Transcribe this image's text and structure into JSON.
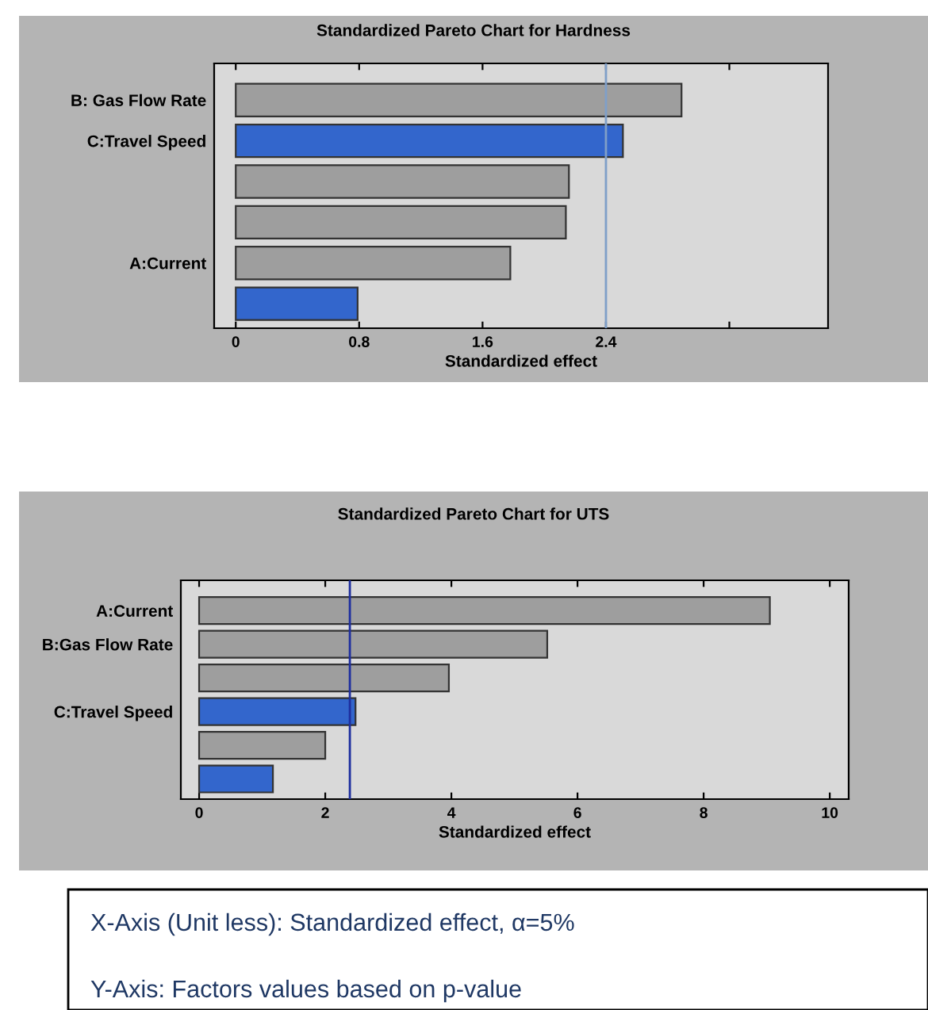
{
  "chart_data": [
    {
      "type": "bar",
      "orientation": "horizontal",
      "title": "Standardized Pareto Chart for Hardness",
      "xlabel": "Standardized effect",
      "categories": [
        "B: Gas Flow Rate",
        "C:Travel Speed",
        null,
        null,
        "A:Current",
        null
      ],
      "values": [
        2.89,
        2.51,
        2.16,
        2.14,
        1.78,
        0.79
      ],
      "colors": [
        "#9e9e9e",
        "#3366cc",
        "#9e9e9e",
        "#9e9e9e",
        "#9e9e9e",
        "#3366cc"
      ],
      "xlim": [
        -0.14,
        3.84
      ],
      "xticks": [
        0,
        0.8,
        1.6,
        2.4,
        {
          "value": 3.2,
          "label": null
        }
      ],
      "ref_lines": [
        {
          "axis": "x",
          "value": 2.4,
          "color": "#7f9fc8"
        }
      ]
    },
    {
      "type": "bar",
      "orientation": "horizontal",
      "title": "Standardized Pareto Chart for UTS",
      "xlabel": "Standardized effect",
      "categories": [
        "A:Current",
        "B:Gas Flow Rate",
        null,
        "C:Travel Speed",
        null,
        null
      ],
      "values": [
        9.05,
        5.52,
        3.96,
        2.48,
        2.0,
        1.17
      ],
      "colors": [
        "#9e9e9e",
        "#9e9e9e",
        "#9e9e9e",
        "#3366cc",
        "#9e9e9e",
        "#3366cc"
      ],
      "xlim": [
        -0.29,
        10.3
      ],
      "xticks": [
        0,
        2,
        4,
        6,
        8,
        10
      ],
      "ref_lines": [
        {
          "axis": "x",
          "value": 2.39,
          "color": "#1f2f9f"
        }
      ],
      "annotations": [
        "X-Axis (Unit less): Standardized effect, α=5%",
        "Y-Axis: Factors values based on p-value"
      ]
    }
  ]
}
